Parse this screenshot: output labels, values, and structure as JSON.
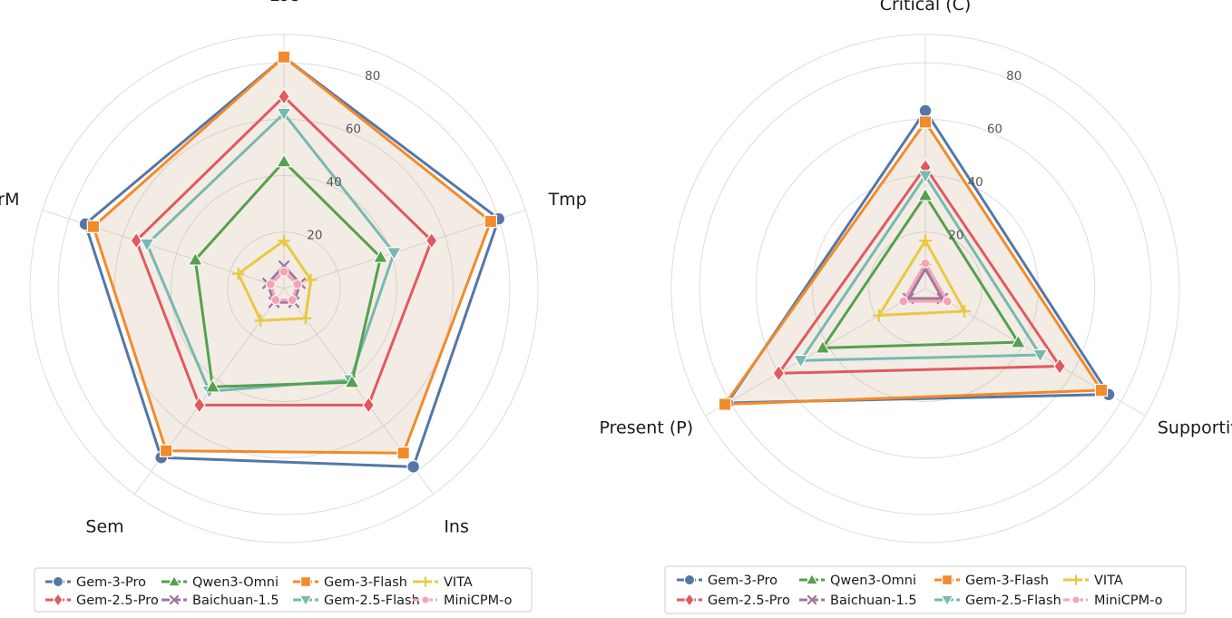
{
  "chart_data": [
    {
      "type": "radar",
      "axes": [
        "Loc",
        "Tmp",
        "Ins",
        "Sem",
        "CrM"
      ],
      "rlim": [
        0,
        90
      ],
      "rticks": [
        20,
        40,
        60,
        80
      ],
      "rtick_labels": [
        "20",
        "40",
        "60",
        "80"
      ],
      "fill_series": "Gem-3-Flash",
      "legend": "bottom",
      "series": [
        {
          "name": "Gem-3-Pro",
          "color": "#5577a6",
          "marker": "circle",
          "values": [
            82,
            80,
            78,
            74,
            74
          ]
        },
        {
          "name": "Gem-2.5-Pro",
          "color": "#e05a5f",
          "marker": "diamond",
          "values": [
            68,
            55,
            51,
            51,
            55
          ]
        },
        {
          "name": "Qwen3-Omni",
          "color": "#55a14e",
          "marker": "triangle-up",
          "values": [
            45,
            36,
            41,
            43,
            33
          ]
        },
        {
          "name": "Baichuan-1.5",
          "color": "#a0769f",
          "marker": "x",
          "values": [
            8,
            6,
            6,
            6,
            6
          ]
        },
        {
          "name": "Gem-3-Flash",
          "color": "#f28b2a",
          "marker": "square",
          "values": [
            82,
            77,
            72,
            71,
            71
          ]
        },
        {
          "name": "Gem-2.5-Flash",
          "color": "#77b9b0",
          "marker": "triangle-down",
          "values": [
            62,
            41,
            40,
            45,
            51
          ]
        },
        {
          "name": "VITA",
          "color": "#ebc842",
          "marker": "plus",
          "values": [
            17,
            10,
            13,
            14,
            17
          ]
        },
        {
          "name": "MiniCPM-o",
          "color": "#f6a4b3",
          "marker": "dash-dot",
          "values": [
            6,
            5,
            5,
            5,
            5
          ]
        }
      ]
    },
    {
      "type": "radar",
      "axes": [
        "Critical (C)",
        "Supportive (S)",
        "Present (P)"
      ],
      "rlim": [
        0,
        90
      ],
      "rticks": [
        20,
        40,
        60,
        80
      ],
      "rtick_labels": [
        "20",
        "40",
        "60",
        "80"
      ],
      "fill_series": "Gem-3-Flash",
      "legend": "bottom",
      "series": [
        {
          "name": "Gem-3-Pro",
          "color": "#5577a6",
          "marker": "circle",
          "values": [
            63,
            75,
            81
          ]
        },
        {
          "name": "Gem-2.5-Pro",
          "color": "#e05a5f",
          "marker": "diamond",
          "values": [
            43,
            55,
            60
          ]
        },
        {
          "name": "Qwen3-Omni",
          "color": "#55a14e",
          "marker": "triangle-up",
          "values": [
            33,
            38,
            42
          ]
        },
        {
          "name": "Baichuan-1.5",
          "color": "#a0769f",
          "marker": "x",
          "values": [
            7,
            7,
            7
          ]
        },
        {
          "name": "Gem-3-Flash",
          "color": "#f28b2a",
          "marker": "square",
          "values": [
            59,
            72,
            82
          ]
        },
        {
          "name": "Gem-2.5-Flash",
          "color": "#77b9b0",
          "marker": "triangle-down",
          "values": [
            40,
            47,
            51
          ]
        },
        {
          "name": "VITA",
          "color": "#ebc842",
          "marker": "plus",
          "values": [
            17,
            16,
            19
          ]
        },
        {
          "name": "MiniCPM-o",
          "color": "#f6a4b3",
          "marker": "dash-dot",
          "values": [
            9,
            9,
            9
          ]
        }
      ]
    }
  ]
}
